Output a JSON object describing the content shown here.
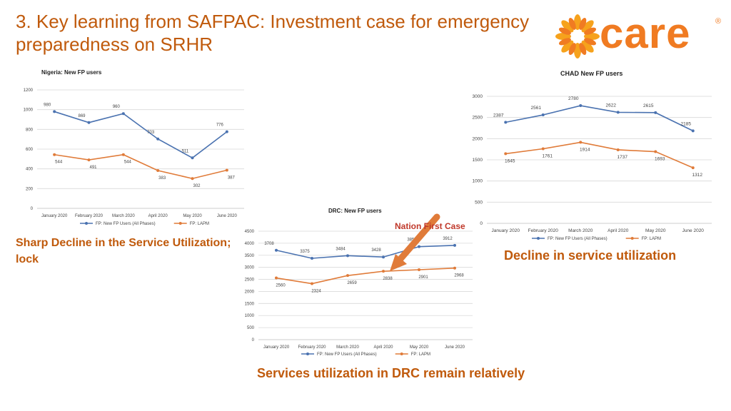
{
  "slide": {
    "title_line1": "3. Key learning from SAFPAC: Investment case for emergency",
    "title_line2": "preparedness on SRHR",
    "logo_text": "care",
    "logo_reg": "®",
    "note_left": "Sharp Decline in the Service Utilization; lock",
    "note_right": "Decline in service utilization",
    "note_bottom": "Services utilization in DRC remain relatively",
    "annotation": "Nation First Case"
  },
  "colors": {
    "title": "#c05a0c",
    "series_blue": "#4a72b0",
    "series_orange": "#e07b39",
    "arrow": "#e07b39",
    "logo": "#f07b22"
  },
  "chart_data": [
    {
      "id": "nigeria",
      "type": "line",
      "title": "Nigeria: New FP users",
      "categories": [
        "January 2020",
        "February 2020",
        "March 2020",
        "April 2020",
        "May 2020",
        "June 2020"
      ],
      "series": [
        {
          "name": "FP: New FP Users (All Phases)",
          "values": [
            980,
            869,
            960,
            703,
            511,
            776
          ]
        },
        {
          "name": "FP: LAPM",
          "values": [
            544,
            491,
            544,
            383,
            302,
            387
          ]
        }
      ],
      "ylim": [
        0,
        1200
      ],
      "ytick_step": 200,
      "grid": true,
      "legend": "bottom",
      "xlabel": "",
      "ylabel": ""
    },
    {
      "id": "chad",
      "type": "line",
      "title": "CHAD New FP users",
      "categories": [
        "January 2020",
        "February 2020",
        "March 2020",
        "April 2020",
        "May 2020",
        "June 2020"
      ],
      "series": [
        {
          "name": "FP: New FP Users (All Phases)",
          "values": [
            2387,
            2561,
            2780,
            2622,
            2615,
            2185
          ]
        },
        {
          "name": "FP: LAPM",
          "values": [
            1645,
            1761,
            1914,
            1737,
            1693,
            1312
          ]
        }
      ],
      "ylim": [
        0,
        3000
      ],
      "ytick_step": 500,
      "grid": true,
      "legend": "bottom",
      "xlabel": "",
      "ylabel": ""
    },
    {
      "id": "drc",
      "type": "line",
      "title": "DRC: New FP users",
      "categories": [
        "January 2020",
        "February 2020",
        "March 2020",
        "April 2020",
        "May 2020",
        "June 2020"
      ],
      "series": [
        {
          "name": "FP: New FP Users (All Phases)",
          "values": [
            3708,
            3375,
            3484,
            3428,
            3859,
            3912
          ]
        },
        {
          "name": "FP: LAPM",
          "values": [
            2560,
            2324,
            2659,
            2838,
            2901,
            2968
          ]
        }
      ],
      "ylim": [
        0,
        4500
      ],
      "ytick_step": 500,
      "grid": true,
      "legend": "bottom",
      "xlabel": "",
      "ylabel": ""
    }
  ]
}
